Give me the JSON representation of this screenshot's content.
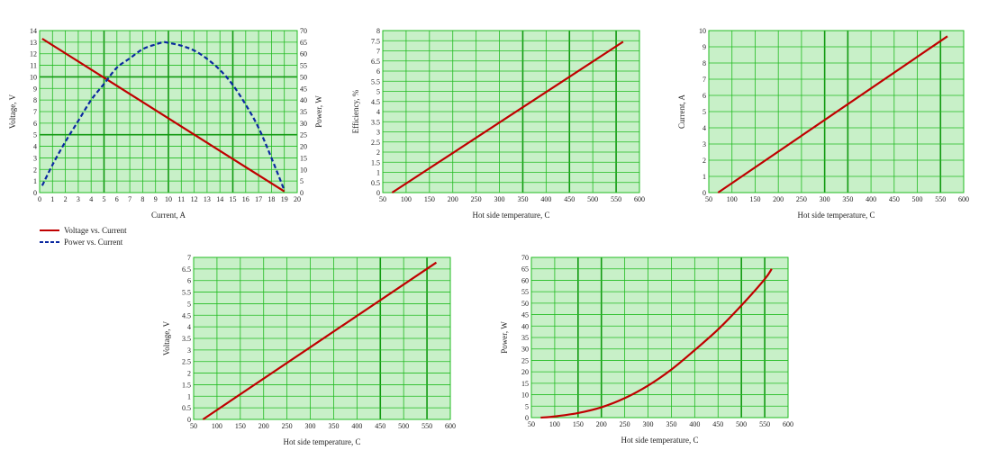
{
  "colors": {
    "plot_bg": "#c8f0c8",
    "grid_minor": "#22bb22",
    "grid_major": "#119911",
    "voltage_line": "#c00000",
    "power_line": "#0a28a0"
  },
  "chart_data": [
    {
      "id": "iv",
      "type": "line",
      "xlabel": "Current, A",
      "ylabel": "Voltage, V",
      "y2label": "Power, W",
      "xlim": [
        0,
        20
      ],
      "ylim": [
        0,
        14
      ],
      "y2lim": [
        0,
        70
      ],
      "xticks": [
        "0",
        "1",
        "2",
        "3",
        "4",
        "5",
        "6",
        "7",
        "8",
        "9",
        "10",
        "11",
        "12",
        "13",
        "14",
        "15",
        "16",
        "17",
        "18",
        "19",
        "20"
      ],
      "yticks": [
        "0",
        "1",
        "2",
        "3",
        "4",
        "5",
        "6",
        "7",
        "8",
        "9",
        "10",
        "11",
        "12",
        "13",
        "14"
      ],
      "y2ticks": [
        "0",
        "5",
        "10",
        "15",
        "20",
        "25",
        "30",
        "35",
        "40",
        "45",
        "50",
        "55",
        "60",
        "65",
        "70"
      ],
      "legend": [
        "Voltage vs. Current",
        "Power vs. Current"
      ],
      "series": [
        {
          "name": "Voltage vs. Current",
          "axis": "y",
          "style": "solid",
          "x": [
            0.2,
            19.0
          ],
          "y": [
            13.3,
            0.1
          ]
        },
        {
          "name": "Power vs. Current",
          "axis": "y2",
          "style": "dashed",
          "x": [
            0.2,
            1,
            2,
            3,
            4,
            5,
            6,
            7,
            8,
            9,
            9.6,
            10,
            11,
            12,
            13,
            14,
            15,
            16,
            17,
            18,
            19
          ],
          "y": [
            3,
            12,
            22,
            31,
            40,
            47,
            54,
            58,
            62,
            64,
            65,
            64.7,
            63.5,
            61.4,
            57.8,
            53,
            46.5,
            38,
            28,
            15,
            1
          ]
        }
      ]
    },
    {
      "id": "eff",
      "type": "line",
      "xlabel": "Hot side temperature, C",
      "ylabel": "Efficiency, %",
      "xlim": [
        50,
        600
      ],
      "ylim": [
        0,
        8
      ],
      "xticks": [
        "50",
        "100",
        "150",
        "200",
        "250",
        "300",
        "350",
        "400",
        "450",
        "500",
        "550",
        "600"
      ],
      "yticks": [
        "0",
        "0.5",
        "1",
        "1.5",
        "2",
        "2.5",
        "3",
        "3.5",
        "4",
        "4.5",
        "5",
        "5.5",
        "6",
        "6.5",
        "7",
        "7.5",
        "8"
      ],
      "series": [
        {
          "style": "solid",
          "x": [
            70,
            565
          ],
          "y": [
            0,
            7.45
          ]
        }
      ]
    },
    {
      "id": "cur",
      "type": "line",
      "xlabel": "Hot side temperature, C",
      "ylabel": "Current, A",
      "xlim": [
        50,
        600
      ],
      "ylim": [
        0,
        10
      ],
      "xticks": [
        "50",
        "100",
        "150",
        "200",
        "250",
        "300",
        "350",
        "400",
        "450",
        "500",
        "550",
        "600"
      ],
      "yticks": [
        "0",
        "1",
        "2",
        "3",
        "4",
        "5",
        "6",
        "7",
        "8",
        "9",
        "10"
      ],
      "series": [
        {
          "style": "solid",
          "x": [
            70,
            565
          ],
          "y": [
            0,
            9.65
          ]
        }
      ]
    },
    {
      "id": "volt",
      "type": "line",
      "xlabel": "Hot side temperature, C",
      "ylabel": "Voltage, V",
      "xlim": [
        50,
        600
      ],
      "ylim": [
        0,
        7
      ],
      "xticks": [
        "50",
        "100",
        "150",
        "200",
        "250",
        "300",
        "350",
        "400",
        "450",
        "500",
        "550",
        "600"
      ],
      "yticks": [
        "0",
        "0.5",
        "1",
        "1.5",
        "2",
        "2.5",
        "3",
        "3.5",
        "4",
        "4.5",
        "5",
        "5.5",
        "6",
        "6.5",
        "7"
      ],
      "series": [
        {
          "style": "solid",
          "x": [
            70,
            570
          ],
          "y": [
            0,
            6.78
          ]
        }
      ]
    },
    {
      "id": "pow",
      "type": "line",
      "xlabel": "Hot side temperature, C",
      "ylabel": "Power, W",
      "xlim": [
        50,
        600
      ],
      "ylim": [
        0,
        70
      ],
      "xticks": [
        "50",
        "100",
        "150",
        "200",
        "250",
        "300",
        "350",
        "400",
        "450",
        "500",
        "550",
        "600"
      ],
      "yticks": [
        "0",
        "5",
        "10",
        "15",
        "20",
        "25",
        "30",
        "35",
        "40",
        "45",
        "50",
        "55",
        "60",
        "65",
        "70"
      ],
      "series": [
        {
          "style": "solid",
          "x": [
            70,
            100,
            150,
            200,
            250,
            300,
            350,
            400,
            450,
            500,
            550,
            565
          ],
          "y": [
            0,
            0.5,
            2,
            4.5,
            8.5,
            14,
            21,
            29.5,
            38.5,
            49,
            60.5,
            65
          ]
        }
      ]
    }
  ]
}
